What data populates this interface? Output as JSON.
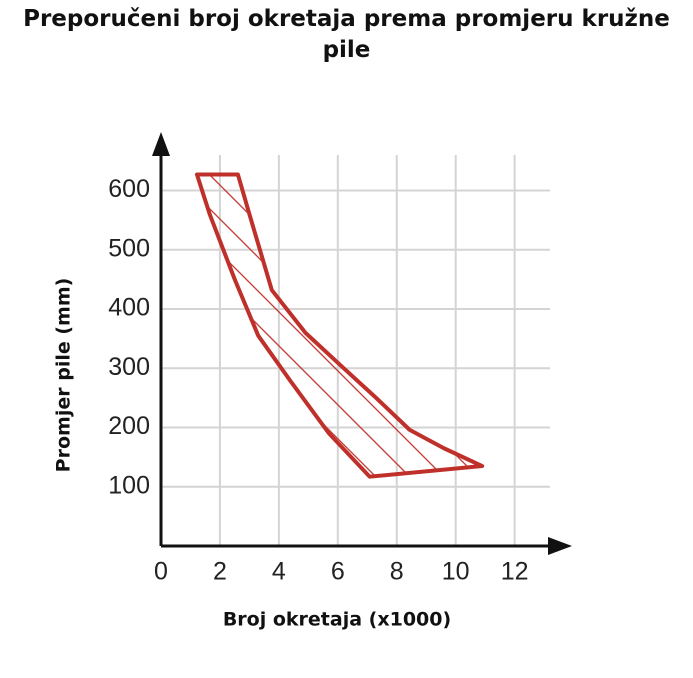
{
  "chart_data": {
    "type": "area",
    "title": "Preporučeni broj okretaja prema promjeru kružne pile",
    "x_label": "Broj okretaja (x1000)",
    "y_label": "Promjer pile (mm)",
    "x": [
      1.22,
      2.61,
      3.0,
      3.76,
      4.9,
      6.07,
      7.3,
      8.44,
      9.6,
      10.9,
      7.08,
      5.7,
      4.37,
      3.3,
      2.51,
      1.66,
      1.22
    ],
    "values": [
      627,
      627,
      560,
      432,
      360,
      306,
      250,
      196,
      165,
      135,
      117,
      190,
      280,
      355,
      449,
      559,
      627
    ],
    "color": "#c0302b",
    "xlim": [
      0,
      13.2
    ],
    "ylim": [
      0,
      660
    ],
    "xticks": [
      0,
      2,
      4,
      6,
      8,
      10,
      12
    ],
    "yticks": [
      100,
      200,
      300,
      400,
      500,
      600
    ],
    "grid": true
  }
}
